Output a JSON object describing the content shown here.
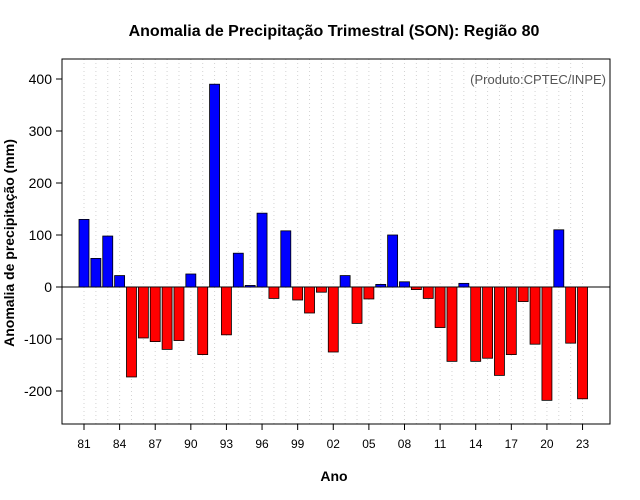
{
  "chart_data": {
    "type": "bar",
    "title": "Anomalia de Precipitação Trimestral (SON): Região 80",
    "xlabel": "Ano",
    "ylabel": "Anomalia de precipitação (mm)",
    "source_note": "(Produto:CPTEC/INPE)",
    "ylim": [
      -265,
      440
    ],
    "yticks": [
      -200,
      -100,
      0,
      100,
      200,
      300,
      400
    ],
    "ytick_labels": [
      "-200",
      "-100",
      "0",
      "100",
      "200",
      "300",
      "400"
    ],
    "xtick_labels": [
      {
        "label": "81",
        "index": 0
      },
      {
        "label": "84",
        "index": 3
      },
      {
        "label": "87",
        "index": 6
      },
      {
        "label": "90",
        "index": 9
      },
      {
        "label": "93",
        "index": 12
      },
      {
        "label": "96",
        "index": 15
      },
      {
        "label": "99",
        "index": 18
      },
      {
        "label": "02",
        "index": 21
      },
      {
        "label": "05",
        "index": 24
      },
      {
        "label": "08",
        "index": 27
      },
      {
        "label": "11",
        "index": 30
      },
      {
        "label": "14",
        "index": 33
      },
      {
        "label": "17",
        "index": 36
      },
      {
        "label": "20",
        "index": 39
      },
      {
        "label": "23",
        "index": 42
      }
    ],
    "categories": [
      "1981",
      "1982",
      "1983",
      "1984",
      "1985",
      "1986",
      "1987",
      "1988",
      "1989",
      "1990",
      "1991",
      "1992",
      "1993",
      "1994",
      "1995",
      "1996",
      "1997",
      "1998",
      "1999",
      "2000",
      "2001",
      "2002",
      "2003",
      "2004",
      "2005",
      "2006",
      "2007",
      "2008",
      "2009",
      "2010",
      "2011",
      "2012",
      "2013",
      "2014",
      "2015",
      "2016",
      "2017",
      "2018",
      "2019",
      "2020",
      "2021",
      "2022",
      "2023"
    ],
    "values": [
      130,
      55,
      98,
      22,
      -173,
      -98,
      -105,
      -120,
      -103,
      25,
      -130,
      390,
      -92,
      65,
      3,
      142,
      -22,
      108,
      -25,
      -50,
      -10,
      -125,
      22,
      -70,
      -23,
      5,
      100,
      10,
      -5,
      -22,
      -78,
      -143,
      7,
      -143,
      -137,
      -170,
      -130,
      -28,
      -110,
      -218,
      110,
      -108,
      -215
    ],
    "grid": "vertical dotted",
    "colors": {
      "positive": "#0000ff",
      "negative": "#ff0000",
      "outline": "#000000",
      "grid": "#d3d3d3",
      "zero_line": "#000000"
    }
  }
}
